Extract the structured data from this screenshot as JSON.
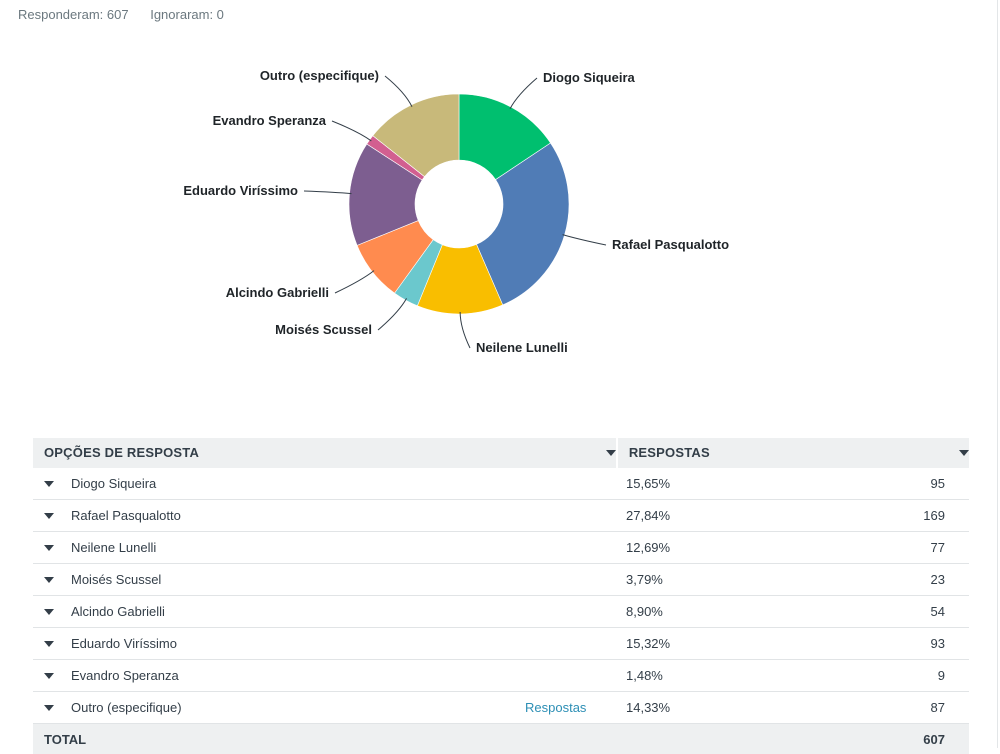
{
  "summary": {
    "answered": "Responderam: 607",
    "skipped": "Ignoraram: 0"
  },
  "chart_data": {
    "type": "pie",
    "donut": true,
    "slices": [
      {
        "label": "Diogo Siqueira",
        "value": 95,
        "percent": 15.65,
        "color": "#00bf6f"
      },
      {
        "label": "Rafael Pasqualotto",
        "value": 169,
        "percent": 27.84,
        "color": "#507cb6"
      },
      {
        "label": "Neilene Lunelli",
        "value": 77,
        "percent": 12.69,
        "color": "#f9be00"
      },
      {
        "label": "Moisés Scussel",
        "value": 23,
        "percent": 3.79,
        "color": "#6bc8cd"
      },
      {
        "label": "Alcindo Gabrielli",
        "value": 54,
        "percent": 8.9,
        "color": "#ff8b4f"
      },
      {
        "label": "Eduardo Viríssimo",
        "value": 93,
        "percent": 15.32,
        "color": "#7d5e90"
      },
      {
        "label": "Evandro Speranza",
        "value": 9,
        "percent": 1.48,
        "color": "#d25f90"
      },
      {
        "label": "Outro (especifique)",
        "value": 87,
        "percent": 14.33,
        "color": "#c8b97a"
      }
    ]
  },
  "table": {
    "header_options": "OPÇÕES DE RESPOSTA",
    "header_responses": "RESPOSTAS",
    "rows": [
      {
        "name": "Diogo Siqueira",
        "pct": "15,65%",
        "count": "95"
      },
      {
        "name": "Rafael Pasqualotto",
        "pct": "27,84%",
        "count": "169"
      },
      {
        "name": "Neilene Lunelli",
        "pct": "12,69%",
        "count": "77"
      },
      {
        "name": "Moisés Scussel",
        "pct": "3,79%",
        "count": "23"
      },
      {
        "name": "Alcindo Gabrielli",
        "pct": "8,90%",
        "count": "54"
      },
      {
        "name": "Eduardo Viríssimo",
        "pct": "15,32%",
        "count": "93"
      },
      {
        "name": "Evandro Speranza",
        "pct": "1,48%",
        "count": "9"
      },
      {
        "name": "Outro (especifique)",
        "link": "Respostas",
        "pct": "14,33%",
        "count": "87"
      }
    ],
    "total_label": "TOTAL",
    "total_value": "607"
  }
}
